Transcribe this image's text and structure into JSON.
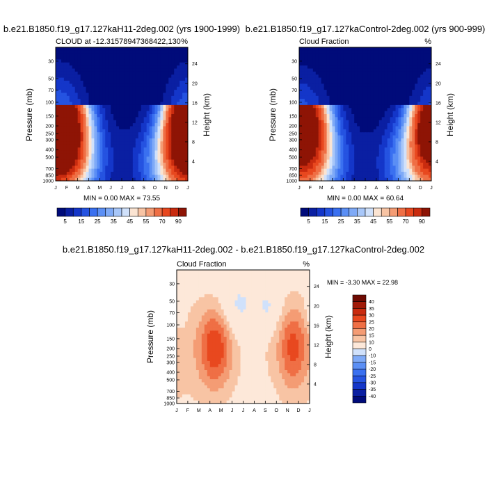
{
  "panels": [
    {
      "title": "b.e21.B1850.f19_g17.127kaH11-2deg.002 (yrs 1900-1999)",
      "left_label": "CLOUD at -12.31578947368422,130",
      "right_label": "%",
      "ylabel": "Pressure (mb)",
      "y2label": "Height (km)",
      "stats": "MIN =   0.00 MAX =  73.55"
    },
    {
      "title": "b.e21.B1850.f19_g17.127kaControl-2deg.002 (yrs 900-999)",
      "left_label": "Cloud Fraction",
      "right_label": "%",
      "ylabel": "Pressure (mb)",
      "y2label": "Height (km)",
      "stats": "MIN =   0.00 MAX =  60.64"
    },
    {
      "title": "b.e21.B1850.f19_g17.127kaH11-2deg.002 - b.e21.B1850.f19_g17.127kaControl-2deg.002",
      "left_label": "Cloud Fraction",
      "right_label": "%",
      "ylabel": "Pressure (mb)",
      "y2label": "Height (km)",
      "stats": "MIN =  -3.30 MAX =  22.98"
    }
  ],
  "chart_data": [
    {
      "type": "heatmap",
      "title": "b.e21.B1850.f19_g17.127kaH11-2deg.002 (yrs 1900-1999)",
      "xlabel": "",
      "ylabel": "Pressure (mb)",
      "y2label": "Height (km)",
      "x_ticks": [
        "J",
        "F",
        "M",
        "A",
        "M",
        "J",
        "J",
        "A",
        "S",
        "O",
        "N",
        "D",
        "J"
      ],
      "y_ticks": [
        30,
        50,
        70,
        100,
        150,
        200,
        250,
        300,
        400,
        500,
        700,
        850,
        1000
      ],
      "y2_ticks": [
        24,
        20,
        16,
        12,
        8,
        4
      ],
      "y_scale": "log",
      "ylim": [
        1000,
        20
      ],
      "x_domain": [
        0,
        12
      ],
      "min": 0.0,
      "max": 73.55,
      "blobs": [
        {
          "x": 0.9,
          "p": 170,
          "amp": 72,
          "sx": 1.6,
          "sp": 0.45
        },
        {
          "x": 11.8,
          "p": 165,
          "amp": 72,
          "sx": 1.4,
          "sp": 0.45
        },
        {
          "x": 1.0,
          "p": 600,
          "amp": 30,
          "sx": 2.5,
          "sp": 0.4
        },
        {
          "x": 11.0,
          "p": 600,
          "amp": 30,
          "sx": 2.5,
          "sp": 0.4
        }
      ],
      "levels": [
        5,
        10,
        15,
        20,
        25,
        30,
        35,
        40,
        45,
        50,
        55,
        60,
        70,
        80,
        90
      ],
      "colorbar_labels": [
        "5",
        "15",
        "25",
        "35",
        "45",
        "55",
        "70",
        "90"
      ]
    },
    {
      "type": "heatmap",
      "title": "b.e21.B1850.f19_g17.127kaControl-2deg.002 (yrs 900-999)",
      "xlabel": "",
      "ylabel": "Pressure (mb)",
      "y2label": "Height (km)",
      "x_ticks": [
        "J",
        "F",
        "M",
        "A",
        "M",
        "J",
        "J",
        "A",
        "S",
        "O",
        "N",
        "D",
        "J"
      ],
      "y_ticks": [
        30,
        50,
        70,
        100,
        150,
        200,
        250,
        300,
        400,
        500,
        700,
        850,
        1000
      ],
      "y2_ticks": [
        24,
        20,
        16,
        12,
        8,
        4
      ],
      "y_scale": "log",
      "ylim": [
        1000,
        20
      ],
      "x_domain": [
        0,
        12
      ],
      "min": 0.0,
      "max": 60.64,
      "blobs": [
        {
          "x": 0.9,
          "p": 160,
          "amp": 60,
          "sx": 1.5,
          "sp": 0.45
        },
        {
          "x": 11.8,
          "p": 160,
          "amp": 58,
          "sx": 1.3,
          "sp": 0.4
        },
        {
          "x": 1.0,
          "p": 600,
          "amp": 28,
          "sx": 2.5,
          "sp": 0.4
        },
        {
          "x": 11.0,
          "p": 600,
          "amp": 28,
          "sx": 2.5,
          "sp": 0.4
        }
      ],
      "levels": [
        5,
        10,
        15,
        20,
        25,
        30,
        35,
        40,
        45,
        50,
        55,
        60,
        70,
        80,
        90
      ],
      "colorbar_labels": [
        "5",
        "15",
        "25",
        "35",
        "45",
        "55",
        "70",
        "90"
      ]
    },
    {
      "type": "heatmap",
      "title": "b.e21.B1850.f19_g17.127kaH11-2deg.002 - b.e21.B1850.f19_g17.127kaControl-2deg.002",
      "xlabel": "",
      "ylabel": "Pressure (mb)",
      "y2label": "Height (km)",
      "x_ticks": [
        "J",
        "F",
        "M",
        "A",
        "M",
        "J",
        "J",
        "A",
        "S",
        "O",
        "N",
        "D",
        "J"
      ],
      "y_ticks": [
        30,
        50,
        70,
        100,
        150,
        200,
        250,
        300,
        400,
        500,
        700,
        850,
        1000
      ],
      "y2_ticks": [
        24,
        20,
        16,
        12,
        8,
        4
      ],
      "y_scale": "log",
      "ylim": [
        1000,
        20
      ],
      "x_domain": [
        0,
        12
      ],
      "min": -3.3,
      "max": 22.98,
      "base": 5,
      "blobs": [
        {
          "x": 3.5,
          "p": 190,
          "amp": 18,
          "sx": 1.0,
          "sp": 0.35
        },
        {
          "x": 10.5,
          "p": 190,
          "amp": 15,
          "sx": 0.9,
          "sp": 0.35
        },
        {
          "x": 3.0,
          "p": 230,
          "amp": 7,
          "sx": 2.5,
          "sp": 0.6
        },
        {
          "x": 10.0,
          "p": 230,
          "amp": 6,
          "sx": 2.0,
          "sp": 0.6
        },
        {
          "x": 5.5,
          "p": 60,
          "amp": -9,
          "sx": 1.2,
          "sp": 0.25
        },
        {
          "x": 8.3,
          "p": 60,
          "amp": -8,
          "sx": 0.8,
          "sp": 0.2
        },
        {
          "x": 0.2,
          "p": 70,
          "amp": -7,
          "sx": 0.4,
          "sp": 0.15
        }
      ],
      "levels": [
        -40,
        -35,
        -30,
        -25,
        -20,
        -15,
        -10,
        0,
        10,
        15,
        20,
        25,
        30,
        35,
        40
      ],
      "colorbar_labels": [
        "40",
        "35",
        "30",
        "25",
        "20",
        "15",
        "10",
        "0",
        "-10",
        "-15",
        "-20",
        "-25",
        "-30",
        "-35",
        "-40"
      ]
    }
  ],
  "colors": {
    "seq": [
      "#000b7a",
      "#0a1fa2",
      "#1436c9",
      "#2553e1",
      "#3a70f0",
      "#5b8ff5",
      "#7faaf7",
      "#a8c7f9",
      "#d0e1fb",
      "#fbe4d2",
      "#f8c4a4",
      "#f49c74",
      "#ef6f45",
      "#e8481f",
      "#c92b0f",
      "#8e1405"
    ],
    "div": [
      "#000b7a",
      "#0a1fa2",
      "#1436c9",
      "#2553e1",
      "#3a70f0",
      "#5b8ff5",
      "#7faaf7",
      "#d0e1fb",
      "#fde8d9",
      "#f8c4a4",
      "#f49c74",
      "#ef6f45",
      "#e8481f",
      "#c92b0f",
      "#a11a08",
      "#6e0a02"
    ]
  }
}
